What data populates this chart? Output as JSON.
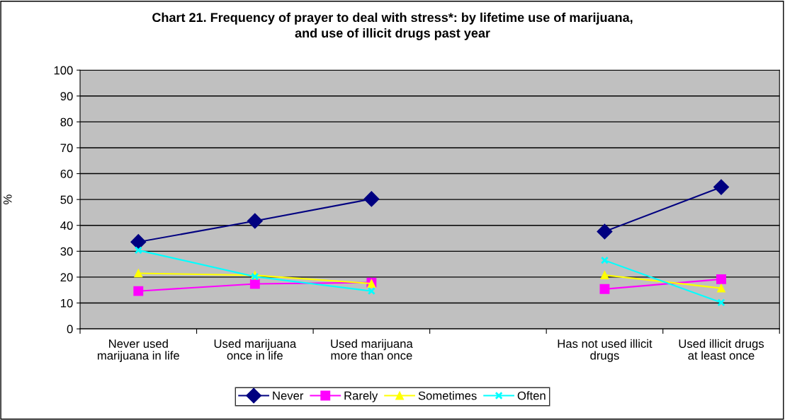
{
  "chart_data": {
    "type": "line",
    "title": "Chart 21. Frequency of prayer to deal with stress*: by lifetime use of marijuana,\nand use of illicit drugs past year",
    "ylabel": "%",
    "categories": [
      "Never used\nmarijuana in life",
      "Used marijuana\nonce in life",
      "Used marijuana\nmore than once",
      null,
      "Has not used illicit\ndrugs",
      "Used illicit drugs\nat least once"
    ],
    "series": [
      {
        "name": "Never",
        "color": "#000080",
        "marker": "diamond",
        "values": [
          33.6,
          41.7,
          50.2,
          null,
          37.6,
          54.8
        ]
      },
      {
        "name": "Rarely",
        "color": "#ff00ff",
        "marker": "square",
        "values": [
          14.6,
          17.4,
          17.9,
          null,
          15.4,
          19.2
        ]
      },
      {
        "name": "Sometimes",
        "color": "#ffff00",
        "marker": "triangle",
        "values": [
          21.5,
          20.7,
          17.5,
          null,
          20.8,
          15.7
        ]
      },
      {
        "name": "Often",
        "color": "#00ffff",
        "marker": "cross",
        "values": [
          30.4,
          20.2,
          14.6,
          null,
          26.5,
          10.2
        ]
      }
    ],
    "ylim": [
      0,
      100
    ],
    "yticks": [
      0,
      10,
      20,
      30,
      40,
      50,
      60,
      70,
      80,
      90,
      100
    ],
    "grid": "y",
    "legend": "bottom"
  }
}
